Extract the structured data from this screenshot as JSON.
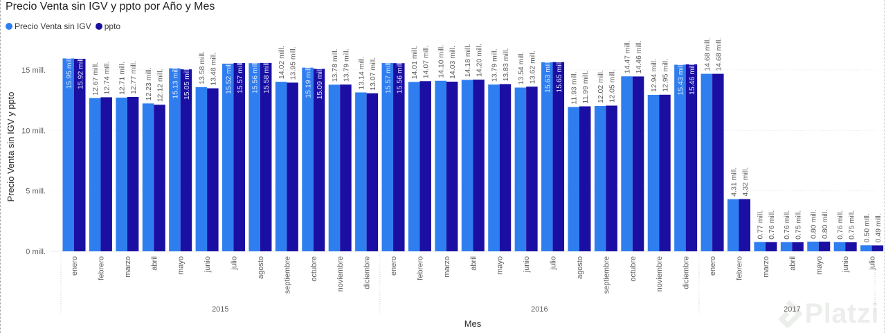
{
  "chart_data": {
    "type": "bar",
    "title": "Precio Venta sin IGV y ppto por Año y Mes",
    "xlabel": "Mes",
    "ylabel": "Precio Venta sin IGV y ppto",
    "ylim": [
      0,
      17.5
    ],
    "yticks": [
      {
        "value": 0,
        "label": "0 mill."
      },
      {
        "value": 5,
        "label": "5 mill."
      },
      {
        "value": 10,
        "label": "10 mill."
      },
      {
        "value": 15,
        "label": "15 mill."
      }
    ],
    "groups": [
      {
        "year": "2015",
        "start": 0,
        "count": 12
      },
      {
        "year": "2016",
        "start": 12,
        "count": 12
      },
      {
        "year": "2017",
        "start": 24,
        "count": 7
      }
    ],
    "categories": [
      "enero",
      "febrero",
      "marzo",
      "abril",
      "mayo",
      "junio",
      "julio",
      "agosto",
      "septiembre",
      "octubre",
      "noviembre",
      "diciembre",
      "enero",
      "febrero",
      "marzo",
      "abril",
      "mayo",
      "junio",
      "julio",
      "agosto",
      "septiembre",
      "octubre",
      "noviembre",
      "diciembre",
      "enero",
      "febrero",
      "marzo",
      "abril",
      "mayo",
      "junio",
      "julio"
    ],
    "series": [
      {
        "name": "Precio Venta sin IGV",
        "color": "#2f7ef0",
        "values": [
          15.95,
          12.67,
          12.71,
          12.23,
          15.13,
          13.58,
          15.52,
          15.56,
          14.02,
          15.19,
          13.78,
          13.14,
          15.57,
          14.01,
          14.1,
          14.18,
          13.79,
          13.54,
          15.63,
          11.93,
          12.02,
          14.47,
          12.94,
          15.43,
          14.68,
          4.31,
          0.77,
          0.76,
          0.8,
          0.76,
          0.5
        ],
        "labels": [
          "15.95 mill.",
          "12.67 mill.",
          "12.71 mill.",
          "12.23 mill.",
          "15.13 mill.",
          "13.58 mill.",
          "15.52 mill.",
          "15.56 mill.",
          "14.02 mill.",
          "15.19 mill.",
          "13.78 mill.",
          "13.14 mill.",
          "15.57 mill.",
          "14.01 mill.",
          "14.10 mill.",
          "14.18 mill.",
          "13.79 mill.",
          "13.54 mill.",
          "15.63 mill.",
          "11.93 mill.",
          "12.02 mill.",
          "14.47 mill.",
          "12.94 mill.",
          "15.43 mill.",
          "14.68 mill.",
          "4.31 mill.",
          "0.77 mill.",
          "0.76 mill.",
          "0.80 mill.",
          "0.76 mill.",
          "0.50 mill."
        ]
      },
      {
        "name": "ppto",
        "color": "#1b0fa3",
        "values": [
          15.92,
          12.74,
          12.77,
          12.12,
          15.05,
          13.48,
          15.57,
          15.58,
          13.95,
          15.09,
          13.79,
          13.07,
          15.56,
          14.07,
          14.03,
          14.2,
          13.83,
          13.62,
          15.65,
          11.99,
          12.05,
          14.46,
          12.95,
          15.46,
          14.68,
          4.32,
          0.76,
          0.75,
          0.8,
          0.75,
          0.49
        ],
        "labels": [
          "15.92 mill.",
          "12.74 mill.",
          "12.77 mill.",
          "12.12 mill.",
          "15.05 mill.",
          "13.48 mill.",
          "15.57 mill.",
          "15.58 mill.",
          "13.95 mill.",
          "15.09 mill.",
          "13.79 mill.",
          "13.07 mill.",
          "15.56 mill.",
          "14.07 mill.",
          "14.03 mill.",
          "14.20 mill.",
          "13.83 mill.",
          "13.62 mill.",
          "15.65 mill.",
          "11.99 mill.",
          "12.05 mill.",
          "14.46 mill.",
          "12.95 mill.",
          "15.46 mill.",
          "14.68 mill.",
          "4.32 mill.",
          "0.76 mill.",
          "0.75 mill.",
          "0.80 mill.",
          "0.75 mill.",
          "0.49 mill."
        ]
      }
    ],
    "legend_position": "top-left",
    "grid": true
  },
  "watermark": {
    "text": "Platzi"
  }
}
